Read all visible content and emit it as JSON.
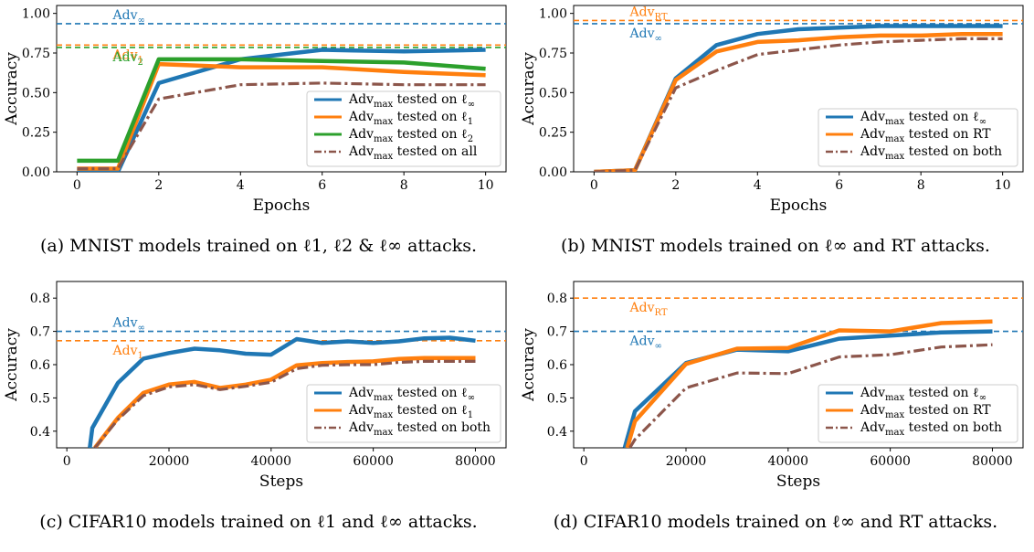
{
  "colors": {
    "blue": "#1f77b4",
    "orange": "#ff7f0e",
    "green": "#2ca02c",
    "brown": "#8c564b"
  },
  "captions": [
    "(a) MNIST models trained on ℓ1, ℓ2 & ℓ∞ attacks.",
    "(b) MNIST models trained on ℓ∞ and RT attacks.",
    "(c) CIFAR10 models trained on ℓ1 and ℓ∞ attacks.",
    "(d) CIFAR10 models trained on ℓ∞ and RT attacks."
  ],
  "chart_data": [
    {
      "type": "line",
      "xlabel": "Epochs",
      "ylabel": "Accuracy",
      "xlim": [
        -0.5,
        10.5
      ],
      "ylim": [
        0,
        1.05
      ],
      "xticks": [
        0,
        2,
        4,
        6,
        8,
        10
      ],
      "yticks": [
        0.0,
        0.25,
        0.5,
        0.75,
        1.0
      ],
      "xtick_labels": [
        "0",
        "2",
        "4",
        "6",
        "8",
        "10"
      ],
      "ytick_labels": [
        "0.00",
        "0.25",
        "0.50",
        "0.75",
        "1.00"
      ],
      "legend_position": "lower-right",
      "hlines": [
        {
          "label": "Adv∞",
          "y": 0.935,
          "color": "#1f77b4",
          "label_pos": "above"
        },
        {
          "label": "Adv1",
          "y": 0.8,
          "color": "#ff7f0e",
          "label_pos": "below"
        },
        {
          "label": "Adv2",
          "y": 0.785,
          "color": "#2ca02c",
          "label_pos": "below"
        }
      ],
      "series": [
        {
          "name": "Advmax tested on ℓ∞",
          "color": "#1f77b4",
          "style": "solid",
          "x": [
            0,
            1,
            2,
            4,
            6,
            8,
            10
          ],
          "y": [
            0.0,
            0.0,
            0.56,
            0.71,
            0.77,
            0.76,
            0.77
          ]
        },
        {
          "name": "Advmax tested on ℓ1",
          "color": "#ff7f0e",
          "style": "solid",
          "x": [
            0,
            1,
            2,
            4,
            6,
            8,
            10
          ],
          "y": [
            0.02,
            0.02,
            0.68,
            0.66,
            0.66,
            0.63,
            0.61
          ]
        },
        {
          "name": "Advmax tested on ℓ2",
          "color": "#2ca02c",
          "style": "solid",
          "x": [
            0,
            1,
            2,
            4,
            6,
            8,
            10
          ],
          "y": [
            0.07,
            0.07,
            0.71,
            0.71,
            0.7,
            0.69,
            0.65
          ]
        },
        {
          "name": "Advmax tested on all",
          "color": "#8c564b",
          "style": "dashdot",
          "x": [
            0,
            1,
            2,
            4,
            6,
            8,
            10
          ],
          "y": [
            0.02,
            0.02,
            0.46,
            0.55,
            0.56,
            0.55,
            0.55
          ]
        }
      ]
    },
    {
      "type": "line",
      "xlabel": "Epochs",
      "ylabel": "Accuracy",
      "xlim": [
        -0.5,
        10.5
      ],
      "ylim": [
        0,
        1.05
      ],
      "xticks": [
        0,
        2,
        4,
        6,
        8,
        10
      ],
      "yticks": [
        0.0,
        0.25,
        0.5,
        0.75,
        1.0
      ],
      "xtick_labels": [
        "0",
        "2",
        "4",
        "6",
        "8",
        "10"
      ],
      "ytick_labels": [
        "0.00",
        "0.25",
        "0.50",
        "0.75",
        "1.00"
      ],
      "legend_position": "lower-right",
      "hlines": [
        {
          "label": "AdvRT",
          "y": 0.955,
          "color": "#ff7f0e",
          "label_pos": "above"
        },
        {
          "label": "Adv∞",
          "y": 0.935,
          "color": "#1f77b4",
          "label_pos": "below"
        }
      ],
      "series": [
        {
          "name": "Advmax tested on ℓ∞",
          "color": "#1f77b4",
          "style": "solid",
          "x": [
            0,
            1,
            2,
            3,
            4,
            5,
            6,
            7,
            8,
            9,
            10
          ],
          "y": [
            0.0,
            0.01,
            0.59,
            0.8,
            0.87,
            0.9,
            0.91,
            0.92,
            0.92,
            0.92,
            0.92
          ]
        },
        {
          "name": "Advmax tested on RT",
          "color": "#ff7f0e",
          "style": "solid",
          "x": [
            0,
            1,
            2,
            3,
            4,
            5,
            6,
            7,
            8,
            9,
            10
          ],
          "y": [
            0.0,
            0.01,
            0.58,
            0.76,
            0.82,
            0.83,
            0.85,
            0.86,
            0.86,
            0.87,
            0.87
          ]
        },
        {
          "name": "Advmax tested on both",
          "color": "#8c564b",
          "style": "dashdot",
          "x": [
            0,
            1,
            2,
            3,
            4,
            5,
            6,
            7,
            8,
            9,
            10
          ],
          "y": [
            0.0,
            0.01,
            0.53,
            0.64,
            0.74,
            0.77,
            0.8,
            0.82,
            0.83,
            0.84,
            0.84
          ]
        }
      ]
    },
    {
      "type": "line",
      "xlabel": "Steps",
      "ylabel": "Accuracy",
      "xlim": [
        -2000,
        86000
      ],
      "ylim": [
        0.35,
        0.85
      ],
      "xticks": [
        0,
        20000,
        40000,
        60000,
        80000
      ],
      "yticks": [
        0.4,
        0.5,
        0.6,
        0.7,
        0.8
      ],
      "xtick_labels": [
        "0",
        "20000",
        "40000",
        "60000",
        "80000"
      ],
      "ytick_labels": [
        "0.4",
        "0.5",
        "0.6",
        "0.7",
        "0.8"
      ],
      "legend_position": "lower-right",
      "hlines": [
        {
          "label": "Adv∞",
          "y": 0.7,
          "color": "#1f77b4",
          "label_pos": "above"
        },
        {
          "label": "Adv1",
          "y": 0.672,
          "color": "#ff7f0e",
          "label_pos": "below"
        }
      ],
      "series": [
        {
          "name": "Advmax tested on ℓ∞",
          "color": "#1f77b4",
          "style": "solid",
          "x": [
            4500,
            5000,
            10000,
            15000,
            20000,
            25000,
            30000,
            35000,
            40000,
            45000,
            50000,
            55000,
            60000,
            65000,
            70000,
            75000,
            80000
          ],
          "y": [
            0.35,
            0.41,
            0.545,
            0.618,
            0.635,
            0.648,
            0.643,
            0.633,
            0.63,
            0.677,
            0.665,
            0.67,
            0.665,
            0.67,
            0.679,
            0.681,
            0.672
          ]
        },
        {
          "name": "Advmax tested on ℓ1",
          "color": "#ff7f0e",
          "style": "solid",
          "x": [
            5500,
            10000,
            15000,
            20000,
            25000,
            30000,
            35000,
            40000,
            45000,
            50000,
            55000,
            60000,
            65000,
            70000,
            75000,
            80000
          ],
          "y": [
            0.35,
            0.44,
            0.515,
            0.54,
            0.548,
            0.53,
            0.54,
            0.555,
            0.598,
            0.605,
            0.608,
            0.61,
            0.617,
            0.62,
            0.62,
            0.62
          ]
        },
        {
          "name": "Advmax tested on both",
          "color": "#8c564b",
          "style": "dashdot",
          "x": [
            5500,
            10000,
            15000,
            20000,
            25000,
            30000,
            35000,
            40000,
            45000,
            50000,
            55000,
            60000,
            65000,
            70000,
            75000,
            80000
          ],
          "y": [
            0.35,
            0.435,
            0.507,
            0.533,
            0.54,
            0.525,
            0.535,
            0.547,
            0.588,
            0.598,
            0.6,
            0.6,
            0.607,
            0.61,
            0.61,
            0.61
          ]
        }
      ]
    },
    {
      "type": "line",
      "xlabel": "Steps",
      "ylabel": "Accuracy",
      "xlim": [
        -2000,
        86000
      ],
      "ylim": [
        0.35,
        0.85
      ],
      "xticks": [
        0,
        20000,
        40000,
        60000,
        80000
      ],
      "yticks": [
        0.4,
        0.5,
        0.6,
        0.7,
        0.8
      ],
      "xtick_labels": [
        "0",
        "20000",
        "40000",
        "60000",
        "80000"
      ],
      "ytick_labels": [
        "0.4",
        "0.5",
        "0.6",
        "0.7",
        "0.8"
      ],
      "legend_position": "lower-right",
      "hlines": [
        {
          "label": "AdvRT",
          "y": 0.8,
          "color": "#ff7f0e",
          "label_pos": "below"
        },
        {
          "label": "Adv∞",
          "y": 0.7,
          "color": "#1f77b4",
          "label_pos": "below"
        }
      ],
      "series": [
        {
          "name": "Advmax tested on ℓ∞",
          "color": "#1f77b4",
          "style": "solid",
          "x": [
            8000,
            10000,
            20000,
            30000,
            40000,
            50000,
            60000,
            70000,
            80000
          ],
          "y": [
            0.35,
            0.46,
            0.605,
            0.645,
            0.64,
            0.678,
            0.687,
            0.697,
            0.7
          ]
        },
        {
          "name": "Advmax tested on RT",
          "color": "#ff7f0e",
          "style": "solid",
          "x": [
            8500,
            10000,
            20000,
            30000,
            40000,
            50000,
            60000,
            70000,
            80000
          ],
          "y": [
            0.35,
            0.43,
            0.602,
            0.648,
            0.65,
            0.703,
            0.7,
            0.725,
            0.73
          ]
        },
        {
          "name": "Advmax tested on both",
          "color": "#8c564b",
          "style": "dashdot",
          "x": [
            9000,
            10000,
            20000,
            30000,
            40000,
            50000,
            60000,
            70000,
            80000
          ],
          "y": [
            0.35,
            0.375,
            0.53,
            0.575,
            0.573,
            0.623,
            0.63,
            0.653,
            0.66
          ]
        }
      ]
    }
  ]
}
